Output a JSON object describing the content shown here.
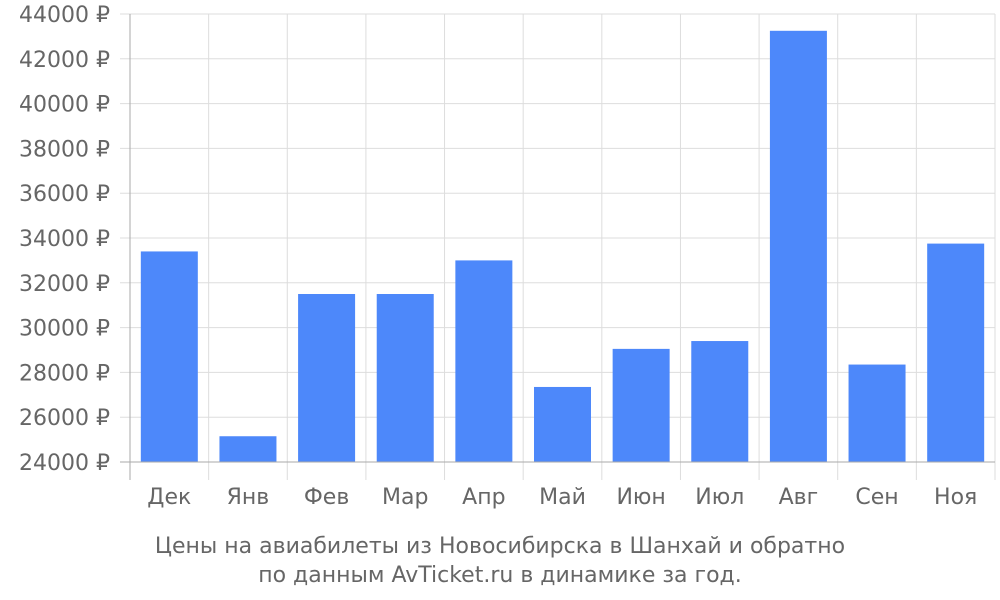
{
  "caption": {
    "line1": "Цены на авиабилеты из Новосибирска в Шанхай и обратно",
    "line2": "по данным AvTicket.ru в динамике за год."
  },
  "chart_data": {
    "type": "bar",
    "categories": [
      "Дек",
      "Янв",
      "Фев",
      "Мар",
      "Апр",
      "Май",
      "Июн",
      "Июл",
      "Авг",
      "Сен",
      "Ноя"
    ],
    "values": [
      33400,
      25150,
      31500,
      31500,
      33000,
      27350,
      29050,
      29400,
      43250,
      28350,
      33750
    ],
    "ylim": [
      24000,
      44000
    ],
    "yticks": [
      24000,
      26000,
      28000,
      30000,
      32000,
      34000,
      36000,
      38000,
      40000,
      42000,
      44000
    ],
    "ytick_suffix": " ₽",
    "title": "",
    "xlabel": "",
    "ylabel": "",
    "grid": true,
    "bar_color": "#4d88fa",
    "grid_color": "#dddddd",
    "axis_color": "#aaaaaa",
    "text_color": "#666666"
  }
}
